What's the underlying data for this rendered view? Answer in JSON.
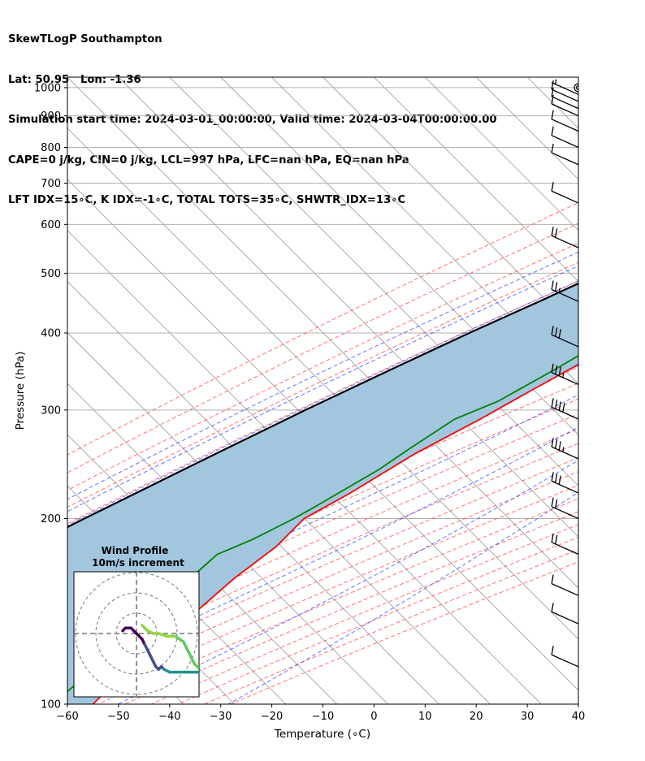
{
  "header": {
    "line1": "SkewTLogP Southampton",
    "line2": "Lat: 50.95   Lon: -1.36",
    "line3": "Simulation start time: 2024-03-01_00:00:00, Valid time: 2024-03-04T00:00:00.00",
    "line4": "CAPE=0 j/kg, CIN=0 j/kg, LCL=997 hPa, LFC=nan hPa, EQ=nan hPa",
    "line5": "LFT IDX=15∘C, K IDX=-1∘C, TOTAL TOTS=35∘C, SHWTR_IDX=13∘C"
  },
  "colors": {
    "temperature": "#ff0000",
    "dewpoint": "#008000",
    "parcel": "#000000",
    "cape_fill": "#a3c6df",
    "dry_adiabat": "#ff4444",
    "moist_adiabat": "#3344ff",
    "isotherm": "#aaaaaa",
    "mixing_ratio": "#8844cc"
  },
  "chart_data": {
    "type": "line",
    "subtype": "skew-T log-P",
    "xlabel": "Temperature (∘C)",
    "ylabel": "Pressure (hPa)",
    "xlim": [
      -60,
      40
    ],
    "ylim": [
      1040,
      100
    ],
    "y_scale": "log",
    "x_ticks": [
      "−60",
      "−50",
      "−40",
      "−30",
      "−20",
      "−10",
      "0",
      "10",
      "20",
      "30",
      "40"
    ],
    "y_ticks": [
      "100",
      "200",
      "300",
      "400",
      "500",
      "600",
      "700",
      "800",
      "900",
      "1000"
    ],
    "grid": true,
    "series": [
      {
        "key": "temperature",
        "points": [
          [
            1011,
            2
          ],
          [
            1000,
            5
          ],
          [
            980,
            6
          ],
          [
            950,
            4
          ],
          [
            900,
            2
          ],
          [
            850,
            0
          ],
          [
            800,
            -1
          ],
          [
            750,
            -3
          ],
          [
            700,
            -5
          ],
          [
            650,
            -8
          ],
          [
            600,
            -11
          ],
          [
            560,
            -14
          ],
          [
            530,
            -13
          ],
          [
            500,
            -12
          ],
          [
            480,
            -12
          ],
          [
            440,
            -15
          ],
          [
            400,
            -20
          ],
          [
            360,
            -26
          ],
          [
            320,
            -31
          ],
          [
            290,
            -35
          ],
          [
            255,
            -41
          ],
          [
            220,
            -46
          ],
          [
            200,
            -50
          ],
          [
            180,
            -50
          ],
          [
            160,
            -52
          ],
          [
            140,
            -53
          ],
          [
            130,
            -53
          ],
          [
            110,
            -55
          ],
          [
            100,
            -55
          ]
        ]
      },
      {
        "key": "dewpoint",
        "points": [
          [
            1011,
            -1
          ],
          [
            1000,
            -1
          ],
          [
            980,
            0
          ],
          [
            950,
            -5
          ],
          [
            900,
            -9
          ],
          [
            850,
            -11
          ],
          [
            800,
            -13
          ],
          [
            750,
            -17
          ],
          [
            700,
            -22
          ],
          [
            650,
            -29
          ],
          [
            600,
            -38
          ],
          [
            560,
            -39
          ],
          [
            520,
            -39
          ],
          [
            500,
            -36
          ],
          [
            470,
            -30
          ],
          [
            440,
            -23
          ],
          [
            420,
            -23
          ],
          [
            380,
            -27
          ],
          [
            350,
            -30
          ],
          [
            310,
            -35
          ],
          [
            290,
            -40
          ],
          [
            260,
            -43
          ],
          [
            240,
            -45
          ],
          [
            210,
            -50
          ],
          [
            200,
            -52
          ],
          [
            185,
            -56
          ],
          [
            175,
            -60
          ],
          [
            150,
            -61
          ],
          [
            130,
            -62
          ],
          [
            110,
            -62
          ],
          [
            100,
            -63
          ]
        ]
      },
      {
        "key": "parcel",
        "points": [
          [
            1011,
            2
          ],
          [
            1000,
            1.5
          ],
          [
            950,
            -1.5
          ],
          [
            900,
            -4.5
          ],
          [
            850,
            -7.8
          ],
          [
            800,
            -11.3
          ],
          [
            750,
            -15
          ],
          [
            700,
            -19
          ],
          [
            650,
            -23.5
          ],
          [
            600,
            -28.5
          ],
          [
            550,
            -34
          ],
          [
            500,
            -40
          ],
          [
            450,
            -46.5
          ],
          [
            400,
            -54
          ],
          [
            350,
            -62
          ],
          [
            300,
            -71
          ],
          [
            250,
            -81
          ],
          [
            200,
            -93
          ],
          [
            150,
            -108
          ],
          [
            100,
            -130
          ]
        ]
      }
    ],
    "wind_barbs": [
      {
        "p": 1000,
        "speed_kt": 0
      },
      {
        "p": 975,
        "speed_kt": 5
      },
      {
        "p": 950,
        "speed_kt": 10
      },
      {
        "p": 925,
        "speed_kt": 10
      },
      {
        "p": 900,
        "speed_kt": 10
      },
      {
        "p": 850,
        "speed_kt": 10
      },
      {
        "p": 800,
        "speed_kt": 10
      },
      {
        "p": 750,
        "speed_kt": 10
      },
      {
        "p": 650,
        "speed_kt": 10
      },
      {
        "p": 550,
        "speed_kt": 20
      },
      {
        "p": 450,
        "speed_kt": 25
      },
      {
        "p": 380,
        "speed_kt": 30
      },
      {
        "p": 330,
        "speed_kt": 35
      },
      {
        "p": 290,
        "speed_kt": 40
      },
      {
        "p": 250,
        "speed_kt": 35
      },
      {
        "p": 220,
        "speed_kt": 30
      },
      {
        "p": 200,
        "speed_kt": 20
      },
      {
        "p": 175,
        "speed_kt": 20
      },
      {
        "p": 150,
        "speed_kt": 10
      },
      {
        "p": 135,
        "speed_kt": 10
      },
      {
        "p": 115,
        "speed_kt": 10
      }
    ],
    "hodograph": {
      "title": "Wind Profile",
      "subtitle": "10m/s increment",
      "points": [
        [
          -5,
          1
        ],
        [
          -4,
          2
        ],
        [
          -2,
          2
        ],
        [
          -1,
          1
        ],
        [
          0,
          0
        ],
        [
          1,
          -1
        ],
        [
          2,
          -2
        ],
        [
          3,
          -4
        ],
        [
          4,
          -6
        ],
        [
          5,
          -8
        ],
        [
          6,
          -10
        ],
        [
          7,
          -12
        ],
        [
          8,
          -13
        ],
        [
          9,
          -12
        ],
        [
          10,
          -13
        ],
        [
          12,
          -14
        ],
        [
          15,
          -14
        ],
        [
          18,
          -14
        ],
        [
          20,
          -14
        ],
        [
          22,
          -14
        ],
        [
          24,
          -14
        ],
        [
          23,
          -13
        ],
        [
          22,
          -12
        ],
        [
          21,
          -11
        ],
        [
          20,
          -9
        ],
        [
          19,
          -7
        ],
        [
          18,
          -5
        ],
        [
          17,
          -3
        ],
        [
          14,
          -1
        ],
        [
          11,
          -1
        ],
        [
          8,
          0
        ],
        [
          6,
          0
        ],
        [
          4,
          1
        ],
        [
          3,
          2
        ],
        [
          2,
          3
        ]
      ]
    }
  }
}
